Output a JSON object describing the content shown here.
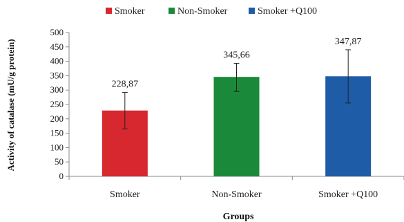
{
  "chart_data": {
    "type": "bar",
    "categories": [
      "Smoker",
      "Non-Smoker",
      "Smoker +Q100"
    ],
    "values": [
      228.87,
      345.66,
      347.87
    ],
    "value_labels": [
      "228,87",
      "345,66",
      "347,87"
    ],
    "error_low": [
      165,
      295,
      255
    ],
    "error_high": [
      292,
      393,
      440
    ],
    "colors": [
      "#d7282f",
      "#1a8a3a",
      "#1f5ca8"
    ],
    "legend": [
      "Smoker",
      "Non-Smoker",
      "Smoker +Q100"
    ],
    "legend_position": "top",
    "xlabel": "Groups",
    "ylabel": "Activity of catalase (mU/g protein)",
    "ylim": [
      0,
      500
    ],
    "yticks": [
      0,
      50,
      100,
      150,
      200,
      250,
      300,
      350,
      400,
      450,
      500
    ],
    "grid": false
  }
}
